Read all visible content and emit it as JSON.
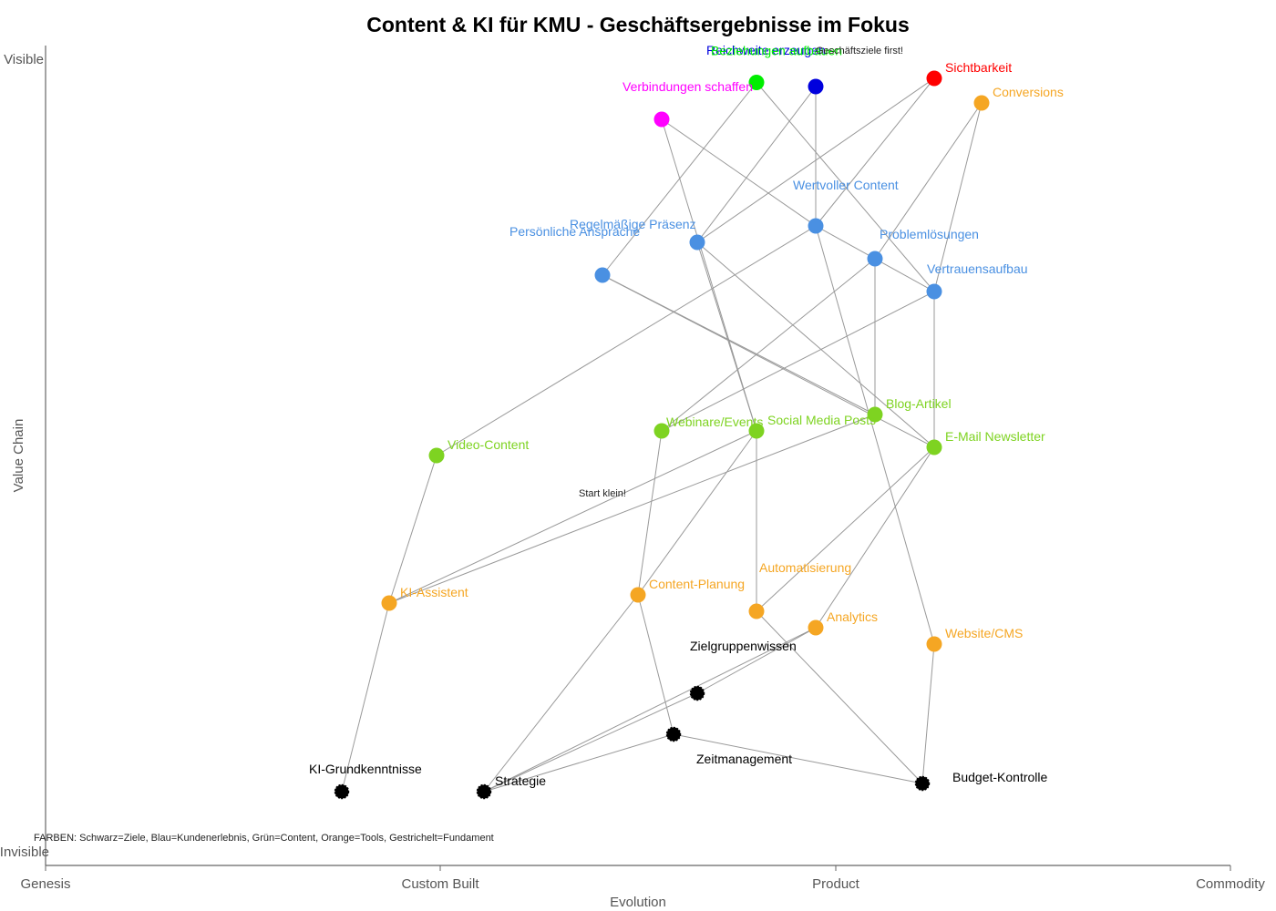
{
  "title": "Content & KI für KMU - Geschäftsergebnisse im Fokus",
  "axes": {
    "x_title": "Evolution",
    "y_title": "Value Chain",
    "y_top": "Visible",
    "y_bottom": "Invisible",
    "x_stages": [
      "Genesis",
      "Custom Built",
      "Product",
      "Commodity"
    ]
  },
  "colors": {
    "sichtbarkeit": "#ff0000",
    "reichweite": "#0000dd",
    "beziehungen": "#00ee00",
    "verbindungen": "#ff00ff",
    "experience": "#4a90e2",
    "content": "#7ed321",
    "tools": "#f5a623",
    "foundation": "#000000",
    "edge": "#999999"
  },
  "notes": {
    "top": "Geschäftsziele first!",
    "start": "Start klein!",
    "legend": "FARBEN: Schwarz=Ziele, Blau=Kundenerlebnis, Grün=Content, Orange=Tools, Gestrichelt=Fundament"
  },
  "nodes": [
    {
      "id": "sichtbarkeit",
      "label": "Sichtbarkeit",
      "evolution": 0.75,
      "visibility": 0.96,
      "color": "sichtbarkeit"
    },
    {
      "id": "reichweite",
      "label": "Reichweite erzeugen",
      "evolution": 0.65,
      "visibility": 0.95,
      "color": "reichweite"
    },
    {
      "id": "beziehungen",
      "label": "Beziehungen aufbauen",
      "evolution": 0.6,
      "visibility": 0.955,
      "color": "beziehungen"
    },
    {
      "id": "verbindungen",
      "label": "Verbindungen schaffen",
      "evolution": 0.52,
      "visibility": 0.91,
      "color": "verbindungen"
    },
    {
      "id": "conversions",
      "label": "Conversions",
      "evolution": 0.79,
      "visibility": 0.93,
      "color": "tools"
    },
    {
      "id": "wertvoller",
      "label": "Wertvoller Content",
      "evolution": 0.65,
      "visibility": 0.78,
      "color": "experience"
    },
    {
      "id": "praesenz",
      "label": "Regelmäßige Präsenz",
      "evolution": 0.55,
      "visibility": 0.76,
      "color": "experience"
    },
    {
      "id": "ansprache",
      "label": "Persönliche Ansprache",
      "evolution": 0.47,
      "visibility": 0.72,
      "color": "experience"
    },
    {
      "id": "problem",
      "label": "Problemlösungen",
      "evolution": 0.7,
      "visibility": 0.74,
      "color": "experience"
    },
    {
      "id": "vertrauen",
      "label": "Vertrauensaufbau",
      "evolution": 0.75,
      "visibility": 0.7,
      "color": "experience"
    },
    {
      "id": "blog",
      "label": "Blog-Artikel",
      "evolution": 0.7,
      "visibility": 0.55,
      "color": "content"
    },
    {
      "id": "social",
      "label": "Social Media Posts",
      "evolution": 0.6,
      "visibility": 0.53,
      "color": "content"
    },
    {
      "id": "webinare",
      "label": "Webinare/Events",
      "evolution": 0.52,
      "visibility": 0.53,
      "color": "content"
    },
    {
      "id": "newsletter",
      "label": "E-Mail Newsletter",
      "evolution": 0.75,
      "visibility": 0.51,
      "color": "content"
    },
    {
      "id": "video",
      "label": "Video-Content",
      "evolution": 0.33,
      "visibility": 0.5,
      "color": "content"
    },
    {
      "id": "kiassistent",
      "label": "KI-Assistent",
      "evolution": 0.29,
      "visibility": 0.32,
      "color": "tools"
    },
    {
      "id": "planung",
      "label": "Content-Planung",
      "evolution": 0.5,
      "visibility": 0.33,
      "color": "tools"
    },
    {
      "id": "automatisierung",
      "label": "Automatisierung",
      "evolution": 0.6,
      "visibility": 0.31,
      "color": "tools"
    },
    {
      "id": "analytics",
      "label": "Analytics",
      "evolution": 0.65,
      "visibility": 0.29,
      "color": "tools"
    },
    {
      "id": "website",
      "label": "Website/CMS",
      "evolution": 0.75,
      "visibility": 0.27,
      "color": "tools"
    },
    {
      "id": "zielgruppe",
      "label": "Zielgruppenwissen",
      "evolution": 0.55,
      "visibility": 0.21,
      "color": "foundation"
    },
    {
      "id": "zeit",
      "label": "Zeitmanagement",
      "evolution": 0.53,
      "visibility": 0.16,
      "color": "foundation"
    },
    {
      "id": "kigrund",
      "label": "KI-Grundkenntnisse",
      "evolution": 0.25,
      "visibility": 0.09,
      "color": "foundation"
    },
    {
      "id": "strategie",
      "label": "Strategie",
      "evolution": 0.37,
      "visibility": 0.09,
      "color": "foundation"
    },
    {
      "id": "budget",
      "label": "Budget-Kontrolle",
      "evolution": 0.74,
      "visibility": 0.1,
      "color": "foundation"
    }
  ],
  "edges": [
    [
      "sichtbarkeit",
      "praesenz"
    ],
    [
      "sichtbarkeit",
      "wertvoller"
    ],
    [
      "reichweite",
      "wertvoller"
    ],
    [
      "reichweite",
      "praesenz"
    ],
    [
      "beziehungen",
      "ansprache"
    ],
    [
      "beziehungen",
      "vertrauen"
    ],
    [
      "verbindungen",
      "wertvoller"
    ],
    [
      "verbindungen",
      "social"
    ],
    [
      "conversions",
      "vertrauen"
    ],
    [
      "conversions",
      "problem"
    ],
    [
      "wertvoller",
      "video"
    ],
    [
      "wertvoller",
      "vertrauen"
    ],
    [
      "wertvoller",
      "website"
    ],
    [
      "praesenz",
      "social"
    ],
    [
      "praesenz",
      "newsletter"
    ],
    [
      "ansprache",
      "blog"
    ],
    [
      "ansprache",
      "newsletter"
    ],
    [
      "problem",
      "blog"
    ],
    [
      "problem",
      "webinare"
    ],
    [
      "vertrauen",
      "webinare"
    ],
    [
      "vertrauen",
      "newsletter"
    ],
    [
      "blog",
      "kiassistent"
    ],
    [
      "social",
      "kiassistent"
    ],
    [
      "social",
      "automatisierung"
    ],
    [
      "social",
      "planung"
    ],
    [
      "newsletter",
      "automatisierung"
    ],
    [
      "newsletter",
      "analytics"
    ],
    [
      "webinare",
      "planung"
    ],
    [
      "video",
      "kiassistent"
    ],
    [
      "kiassistent",
      "kigrund"
    ],
    [
      "planung",
      "strategie"
    ],
    [
      "planung",
      "zeit"
    ],
    [
      "automatisierung",
      "budget"
    ],
    [
      "analytics",
      "strategie"
    ],
    [
      "analytics",
      "zielgruppe"
    ],
    [
      "zielgruppe",
      "strategie"
    ],
    [
      "website",
      "budget"
    ],
    [
      "zeit",
      "strategie"
    ],
    [
      "zeit",
      "budget"
    ]
  ]
}
